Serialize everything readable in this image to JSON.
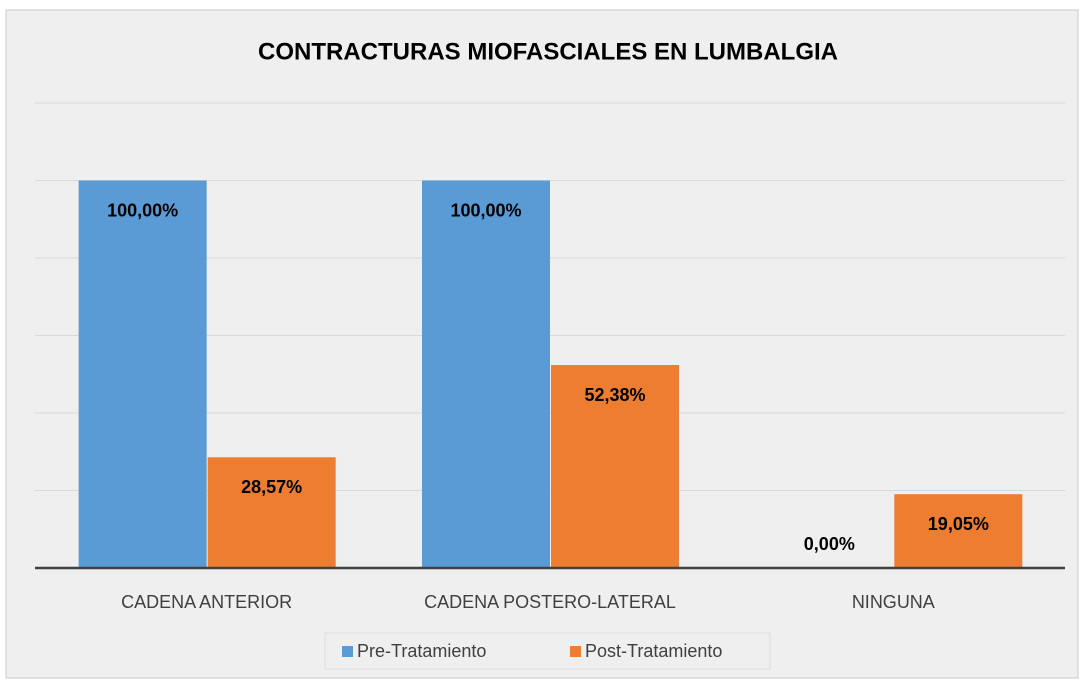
{
  "chart_data": {
    "type": "bar",
    "title": "CONTRACTURAS MIOFASCIALES EN LUMBALGIA",
    "categories": [
      "CADENA ANTERIOR",
      "CADENA POSTERO-LATERAL",
      "NINGUNA"
    ],
    "series": [
      {
        "name": "Pre-Tratamiento",
        "color": "#5b9bd5",
        "values": [
          100,
          100,
          0
        ],
        "value_labels": [
          "100,00%",
          "100,00%",
          "0,00%"
        ]
      },
      {
        "name": "Post-Tratamiento",
        "color": "#ed7d31",
        "values": [
          28.57,
          52.38,
          19.05
        ],
        "value_labels": [
          "28,57%",
          "52,38%",
          "19,05%"
        ]
      }
    ],
    "ylim": [
      0,
      120
    ],
    "yticks": [
      0,
      20,
      40,
      60,
      80,
      100,
      120
    ],
    "grid": true,
    "legend": "bottom"
  }
}
